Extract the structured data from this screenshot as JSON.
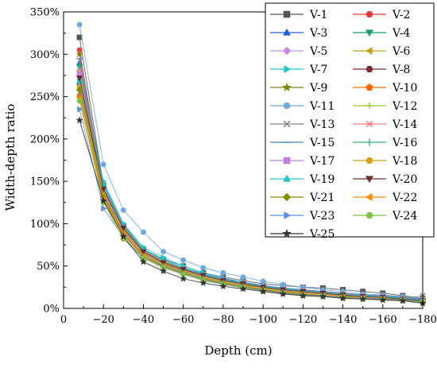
{
  "chart_data": {
    "type": "line",
    "title": "",
    "xlabel": "Depth (cm)",
    "ylabel": "Width-depth ratio",
    "x": [
      -8,
      -20,
      -30,
      -40,
      -50,
      -60,
      -70,
      -80,
      -90,
      -100,
      -110,
      -120,
      -130,
      -140,
      -150,
      -160,
      -170,
      -180
    ],
    "xlim": [
      0,
      -180
    ],
    "ylim": [
      0,
      350
    ],
    "x_ticks": [
      0,
      -20,
      -40,
      -60,
      -80,
      -100,
      -120,
      -140,
      -160,
      -180
    ],
    "x_tick_labels": [
      "0",
      "−20",
      "−40",
      "−60",
      "−80",
      "−100",
      "−120",
      "−140",
      "−160",
      "−180"
    ],
    "y_ticks": [
      0,
      50,
      100,
      150,
      200,
      250,
      300,
      350
    ],
    "y_tick_labels": [
      "0%",
      "50%",
      "100%",
      "150%",
      "200%",
      "250%",
      "300%",
      "350%"
    ],
    "legend_position": "top-right",
    "legend_columns": 2,
    "series": [
      {
        "name": "V-1",
        "color": "#555555",
        "marker": "square",
        "values": [
          320,
          145,
          98,
          70,
          58,
          50,
          42,
          37,
          33,
          29,
          27,
          25,
          24,
          22,
          20,
          18,
          15,
          12
        ]
      },
      {
        "name": "V-2",
        "color": "#f03a3a",
        "marker": "circle",
        "values": [
          305,
          140,
          95,
          68,
          55,
          47,
          40,
          35,
          31,
          27,
          24,
          22,
          20,
          18,
          16,
          15,
          13,
          11
        ]
      },
      {
        "name": "V-3",
        "color": "#1f5fd4",
        "marker": "triangle-up",
        "values": [
          290,
          138,
          93,
          66,
          54,
          46,
          39,
          34,
          30,
          26,
          23,
          21,
          19,
          17,
          15,
          14,
          12,
          10
        ]
      },
      {
        "name": "V-4",
        "color": "#1f9c6a",
        "marker": "triangle-down",
        "values": [
          285,
          135,
          92,
          65,
          53,
          45,
          38,
          33,
          29,
          25,
          22,
          20,
          18,
          16,
          14,
          13,
          11,
          9
        ]
      },
      {
        "name": "V-5",
        "color": "#c58ae6",
        "marker": "diamond",
        "values": [
          280,
          133,
          90,
          64,
          52,
          44,
          37,
          32,
          28,
          24,
          21,
          19,
          17,
          15,
          13,
          12,
          10,
          8
        ]
      },
      {
        "name": "V-6",
        "color": "#c9a018",
        "marker": "triangle-left",
        "values": [
          275,
          132,
          89,
          63,
          51,
          43,
          36,
          31,
          27,
          23,
          20,
          18,
          16,
          14,
          13,
          12,
          10,
          8
        ]
      },
      {
        "name": "V-7",
        "color": "#1ec8c8",
        "marker": "triangle-right",
        "values": [
          270,
          150,
          100,
          72,
          60,
          50,
          42,
          36,
          31,
          27,
          24,
          21,
          19,
          17,
          15,
          14,
          12,
          10
        ]
      },
      {
        "name": "V-8",
        "color": "#7a2f2f",
        "marker": "hexagon",
        "values": [
          265,
          140,
          95,
          67,
          54,
          45,
          38,
          33,
          28,
          24,
          21,
          19,
          17,
          15,
          13,
          12,
          11,
          9
        ]
      },
      {
        "name": "V-9",
        "color": "#808000",
        "marker": "star",
        "values": [
          300,
          130,
          88,
          62,
          50,
          42,
          35,
          30,
          26,
          22,
          19,
          17,
          15,
          13,
          12,
          11,
          10,
          8
        ]
      },
      {
        "name": "V-10",
        "color": "#ff6a00",
        "marker": "pentagon",
        "values": [
          250,
          128,
          87,
          61,
          49,
          41,
          34,
          29,
          25,
          21,
          18,
          16,
          14,
          12,
          11,
          10,
          9,
          7
        ]
      },
      {
        "name": "V-11",
        "color": "#6fa8dc",
        "marker": "circle",
        "values": [
          335,
          170,
          116,
          90,
          67,
          57,
          48,
          42,
          37,
          32,
          28,
          25,
          22,
          20,
          17,
          16,
          14,
          12
        ]
      },
      {
        "name": "V-12",
        "color": "#9acd32",
        "marker": "plus",
        "values": [
          260,
          137,
          92,
          66,
          53,
          45,
          38,
          33,
          29,
          25,
          22,
          20,
          18,
          16,
          14,
          13,
          12,
          10
        ]
      },
      {
        "name": "V-13",
        "color": "#808080",
        "marker": "x",
        "values": [
          255,
          134,
          91,
          65,
          52,
          44,
          37,
          32,
          28,
          24,
          21,
          19,
          17,
          15,
          13,
          12,
          11,
          15
        ]
      },
      {
        "name": "V-14",
        "color": "#ff7f7f",
        "marker": "asterisk",
        "values": [
          280,
          142,
          96,
          68,
          55,
          47,
          39,
          34,
          30,
          26,
          23,
          21,
          19,
          17,
          15,
          14,
          12,
          10
        ]
      },
      {
        "name": "V-15",
        "color": "#4a7fd4",
        "marker": "dash",
        "values": [
          295,
          147,
          99,
          70,
          57,
          48,
          41,
          35,
          31,
          27,
          24,
          22,
          20,
          18,
          16,
          15,
          13,
          11
        ]
      },
      {
        "name": "V-16",
        "color": "#3cb371",
        "marker": "vbar",
        "values": [
          288,
          144,
          97,
          69,
          56,
          47,
          40,
          34,
          30,
          26,
          23,
          21,
          19,
          17,
          15,
          14,
          12,
          10
        ]
      },
      {
        "name": "V-17",
        "color": "#c07ee6",
        "marker": "square",
        "values": [
          276,
          139,
          94,
          67,
          54,
          46,
          39,
          33,
          29,
          25,
          22,
          20,
          18,
          16,
          14,
          13,
          11,
          9
        ]
      },
      {
        "name": "V-18",
        "color": "#d4a017",
        "marker": "circle",
        "values": [
          262,
          136,
          92,
          65,
          53,
          45,
          38,
          32,
          28,
          24,
          21,
          19,
          17,
          15,
          13,
          12,
          11,
          9
        ]
      },
      {
        "name": "V-19",
        "color": "#20c4c4",
        "marker": "triangle-up",
        "values": [
          268,
          146,
          98,
          70,
          57,
          48,
          40,
          34,
          30,
          26,
          23,
          21,
          19,
          17,
          15,
          14,
          12,
          10
        ]
      },
      {
        "name": "V-20",
        "color": "#6b2c2c",
        "marker": "triangle-down",
        "values": [
          272,
          141,
          95,
          67,
          54,
          46,
          39,
          33,
          29,
          25,
          22,
          20,
          18,
          16,
          14,
          13,
          11,
          9
        ]
      },
      {
        "name": "V-21",
        "color": "#8b8b00",
        "marker": "diamond",
        "values": [
          258,
          131,
          88,
          62,
          50,
          42,
          35,
          30,
          26,
          22,
          19,
          17,
          15,
          14,
          12,
          11,
          10,
          8
        ]
      },
      {
        "name": "V-22",
        "color": "#ff8c00",
        "marker": "triangle-left",
        "values": [
          248,
          129,
          87,
          61,
          49,
          41,
          34,
          29,
          25,
          21,
          18,
          16,
          15,
          13,
          12,
          11,
          10,
          8
        ]
      },
      {
        "name": "V-23",
        "color": "#5b8fe0",
        "marker": "triangle-right",
        "values": [
          235,
          118,
          84,
          60,
          49,
          41,
          34,
          29,
          25,
          21,
          18,
          16,
          15,
          13,
          12,
          11,
          10,
          8
        ]
      },
      {
        "name": "V-24",
        "color": "#7dc242",
        "marker": "hexagon",
        "values": [
          245,
          125,
          82,
          59,
          48,
          40,
          33,
          28,
          24,
          20,
          17,
          15,
          14,
          12,
          11,
          10,
          9,
          7
        ]
      },
      {
        "name": "V-25",
        "color": "#333333",
        "marker": "star",
        "values": [
          222,
          127,
          85,
          55,
          44,
          35,
          30,
          26,
          23,
          20,
          17,
          15,
          14,
          12,
          11,
          10,
          9,
          6
        ]
      }
    ]
  }
}
